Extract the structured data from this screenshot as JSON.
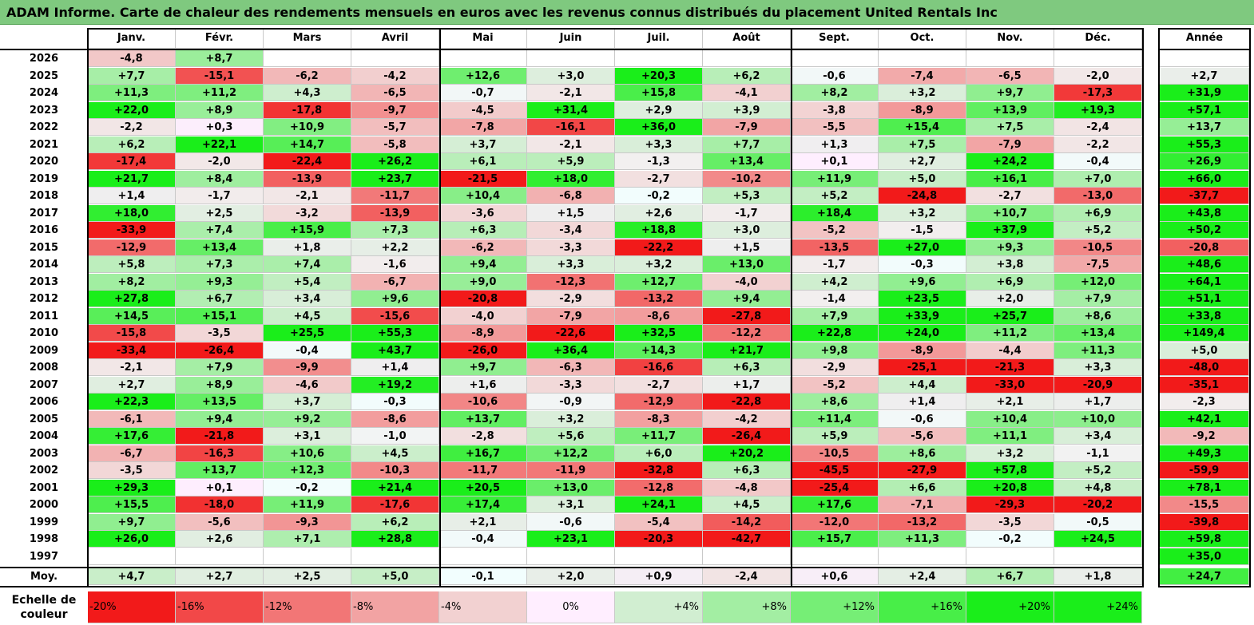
{
  "title": "ADAM Informe. Carte de chaleur des rendements mensuels en euros avec les revenus connus distribués du placement United Rentals Inc",
  "chart_data": {
    "type": "heatmap",
    "title": "ADAM Informe. Carte de chaleur des rendements mensuels en euros avec les revenus connus distribués du placement United Rentals Inc",
    "columns": [
      "Janv.",
      "Févr.",
      "Mars",
      "Avril",
      "Mai",
      "Juin",
      "Juil.",
      "Août",
      "Sept.",
      "Oct.",
      "Nov.",
      "Déc."
    ],
    "year_header": "Année",
    "rows": [
      {
        "label": "2026",
        "values": [
          "-4,8",
          "+8,7",
          "",
          "",
          "",
          "",
          "",
          "",
          "",
          "",
          "",
          ""
        ],
        "year": ""
      },
      {
        "label": "2025",
        "values": [
          "+7,7",
          "-15,1",
          "-6,2",
          "-4,2",
          "+12,6",
          "+3,0",
          "+20,3",
          "+6,2",
          "-0,6",
          "-7,4",
          "-6,5",
          "-2,0"
        ],
        "year": "+2,7"
      },
      {
        "label": "2024",
        "values": [
          "+11,3",
          "+11,2",
          "+4,3",
          "-6,5",
          "-0,7",
          "-2,1",
          "+15,8",
          "-4,1",
          "+8,2",
          "+3,2",
          "+9,7",
          "-17,3"
        ],
        "year": "+31,9"
      },
      {
        "label": "2023",
        "values": [
          "+22,0",
          "+8,9",
          "-17,8",
          "-9,7",
          "-4,5",
          "+31,4",
          "+2,9",
          "+3,9",
          "-3,8",
          "-8,9",
          "+13,9",
          "+19,3"
        ],
        "year": "+57,1"
      },
      {
        "label": "2022",
        "values": [
          "-2,2",
          "+0,3",
          "+10,9",
          "-5,7",
          "-7,8",
          "-16,1",
          "+36,0",
          "-7,9",
          "-5,5",
          "+15,4",
          "+7,5",
          "-2,4"
        ],
        "year": "+13,7"
      },
      {
        "label": "2021",
        "values": [
          "+6,2",
          "+22,1",
          "+14,7",
          "-5,8",
          "+3,7",
          "-2,1",
          "+3,3",
          "+7,7",
          "+1,3",
          "+7,5",
          "-7,9",
          "-2,2"
        ],
        "year": "+55,3"
      },
      {
        "label": "2020",
        "values": [
          "-17,4",
          "-2,0",
          "-22,4",
          "+26,2",
          "+6,1",
          "+5,9",
          "-1,3",
          "+13,4",
          "+0,1",
          "+2,7",
          "+24,2",
          "-0,4"
        ],
        "year": "+26,9"
      },
      {
        "label": "2019",
        "values": [
          "+21,7",
          "+8,4",
          "-13,9",
          "+23,7",
          "-21,5",
          "+18,0",
          "-2,7",
          "-10,2",
          "+11,9",
          "+5,0",
          "+16,1",
          "+7,0"
        ],
        "year": "+66,0"
      },
      {
        "label": "2018",
        "values": [
          "+1,4",
          "-1,7",
          "-2,1",
          "-11,7",
          "+10,4",
          "-6,8",
          "-0,2",
          "+5,3",
          "+5,2",
          "-24,8",
          "-2,7",
          "-13,0"
        ],
        "year": "-37,7"
      },
      {
        "label": "2017",
        "values": [
          "+18,0",
          "+2,5",
          "-3,2",
          "-13,9",
          "-3,6",
          "+1,5",
          "+2,6",
          "-1,7",
          "+18,4",
          "+3,2",
          "+10,7",
          "+6,9"
        ],
        "year": "+43,8"
      },
      {
        "label": "2016",
        "values": [
          "-33,9",
          "+7,4",
          "+15,9",
          "+7,3",
          "+6,3",
          "-3,4",
          "+18,8",
          "+3,0",
          "-5,2",
          "-1,5",
          "+37,9",
          "+5,2"
        ],
        "year": "+50,2"
      },
      {
        "label": "2015",
        "values": [
          "-12,9",
          "+13,4",
          "+1,8",
          "+2,2",
          "-6,2",
          "-3,3",
          "-22,2",
          "+1,5",
          "-13,5",
          "+27,0",
          "+9,3",
          "-10,5"
        ],
        "year": "-20,8"
      },
      {
        "label": "2014",
        "values": [
          "+5,8",
          "+7,3",
          "+7,4",
          "-1,6",
          "+9,4",
          "+3,3",
          "+3,2",
          "+13,0",
          "-1,7",
          "-0,3",
          "+3,8",
          "-7,5"
        ],
        "year": "+48,6"
      },
      {
        "label": "2013",
        "values": [
          "+8,2",
          "+9,3",
          "+5,4",
          "-6,7",
          "+9,0",
          "-12,3",
          "+12,7",
          "-4,0",
          "+4,2",
          "+9,6",
          "+6,9",
          "+12,0"
        ],
        "year": "+64,1"
      },
      {
        "label": "2012",
        "values": [
          "+27,8",
          "+6,7",
          "+3,4",
          "+9,6",
          "-20,8",
          "-2,9",
          "-13,2",
          "+9,4",
          "-1,4",
          "+23,5",
          "+2,0",
          "+7,9"
        ],
        "year": "+51,1"
      },
      {
        "label": "2011",
        "values": [
          "+14,5",
          "+15,1",
          "+4,5",
          "-15,6",
          "-4,0",
          "-7,9",
          "-8,6",
          "-27,8",
          "+7,9",
          "+33,9",
          "+25,7",
          "+8,6"
        ],
        "year": "+33,8"
      },
      {
        "label": "2010",
        "values": [
          "-15,8",
          "-3,5",
          "+25,5",
          "+55,3",
          "-8,9",
          "-22,6",
          "+32,5",
          "-12,2",
          "+22,8",
          "+24,0",
          "+11,2",
          "+13,4"
        ],
        "year": "+149,4"
      },
      {
        "label": "2009",
        "values": [
          "-33,4",
          "-26,4",
          "-0,4",
          "+43,7",
          "-26,0",
          "+36,4",
          "+14,3",
          "+21,7",
          "+9,8",
          "-8,9",
          "-4,4",
          "+11,3"
        ],
        "year": "+5,0"
      },
      {
        "label": "2008",
        "values": [
          "-2,1",
          "+7,9",
          "-9,9",
          "+1,4",
          "+9,7",
          "-6,3",
          "-16,6",
          "+6,3",
          "-2,9",
          "-25,1",
          "-21,3",
          "+3,3"
        ],
        "year": "-48,0"
      },
      {
        "label": "2007",
        "values": [
          "+2,7",
          "+8,9",
          "-4,6",
          "+19,2",
          "+1,6",
          "-3,3",
          "-2,7",
          "+1,7",
          "-5,2",
          "+4,4",
          "-33,0",
          "-20,9"
        ],
        "year": "-35,1"
      },
      {
        "label": "2006",
        "values": [
          "+22,3",
          "+13,5",
          "+3,7",
          "-0,3",
          "-10,6",
          "-0,9",
          "-12,9",
          "-22,8",
          "+8,6",
          "+1,4",
          "+2,1",
          "+1,7"
        ],
        "year": "-2,3"
      },
      {
        "label": "2005",
        "values": [
          "-6,1",
          "+9,4",
          "+9,2",
          "-8,6",
          "+13,7",
          "+3,2",
          "-8,3",
          "-4,2",
          "+11,4",
          "-0,6",
          "+10,4",
          "+10,0"
        ],
        "year": "+42,1"
      },
      {
        "label": "2004",
        "values": [
          "+17,6",
          "-21,8",
          "+3,1",
          "-1,0",
          "-2,8",
          "+5,6",
          "+11,7",
          "-26,4",
          "+5,9",
          "-5,6",
          "+11,1",
          "+3,4"
        ],
        "year": "-9,2"
      },
      {
        "label": "2003",
        "values": [
          "-6,7",
          "-16,3",
          "+10,6",
          "+4,5",
          "+16,7",
          "+12,2",
          "+6,0",
          "+20,2",
          "-10,5",
          "+8,6",
          "+3,2",
          "-1,1"
        ],
        "year": "+49,3"
      },
      {
        "label": "2002",
        "values": [
          "-3,5",
          "+13,7",
          "+12,3",
          "-10,3",
          "-11,7",
          "-11,9",
          "-32,8",
          "+6,3",
          "-45,5",
          "-27,9",
          "+57,8",
          "+5,2"
        ],
        "year": "-59,9"
      },
      {
        "label": "2001",
        "values": [
          "+29,3",
          "+0,1",
          "-0,2",
          "+21,4",
          "+20,5",
          "+13,0",
          "-12,8",
          "-4,8",
          "-25,4",
          "+6,6",
          "+20,8",
          "+4,8"
        ],
        "year": "+78,1"
      },
      {
        "label": "2000",
        "values": [
          "+15,5",
          "-18,0",
          "+11,9",
          "-17,6",
          "+17,4",
          "+3,1",
          "+24,1",
          "+4,5",
          "+17,6",
          "-7,1",
          "-29,3",
          "-20,2"
        ],
        "year": "-15,5"
      },
      {
        "label": "1999",
        "values": [
          "+9,7",
          "-5,6",
          "-9,3",
          "+6,2",
          "+2,1",
          "-0,6",
          "-5,4",
          "-14,2",
          "-12,0",
          "-13,2",
          "-3,5",
          "-0,5"
        ],
        "year": "-39,8"
      },
      {
        "label": "1998",
        "values": [
          "+26,0",
          "+2,6",
          "+7,1",
          "+28,8",
          "-0,4",
          "+23,1",
          "-20,3",
          "-42,7",
          "+15,7",
          "+11,3",
          "-0,2",
          "+24,5"
        ],
        "year": "+59,8"
      },
      {
        "label": "1997",
        "values": [
          "",
          "",
          "",
          "",
          "",
          "",
          "",
          "",
          "",
          "",
          "",
          ""
        ],
        "year": "+35,0"
      }
    ],
    "average": {
      "label": "Moy.",
      "values": [
        "+4,7",
        "+2,7",
        "+2,5",
        "+5,0",
        "-0,1",
        "+2,0",
        "+0,9",
        "-2,4",
        "+0,6",
        "+2,4",
        "+6,7",
        "+1,8"
      ],
      "year": "+24,7"
    },
    "color_scale": {
      "label": "Echelle de couleur",
      "steps": [
        "-20%",
        "-16%",
        "-12%",
        "-8%",
        "-4%",
        "0%",
        "+4%",
        "+8%",
        "+12%",
        "+16%",
        "+20%",
        "+24%"
      ],
      "step_values": [
        -20,
        -16,
        -12,
        -8,
        -4,
        0,
        4,
        8,
        12,
        16,
        20,
        24
      ]
    }
  },
  "colors": {
    "title_bg": "#7fc97f",
    "red_max": "#f21a1a",
    "green_max": "#1aee1a",
    "neutral": "#ffffff"
  }
}
